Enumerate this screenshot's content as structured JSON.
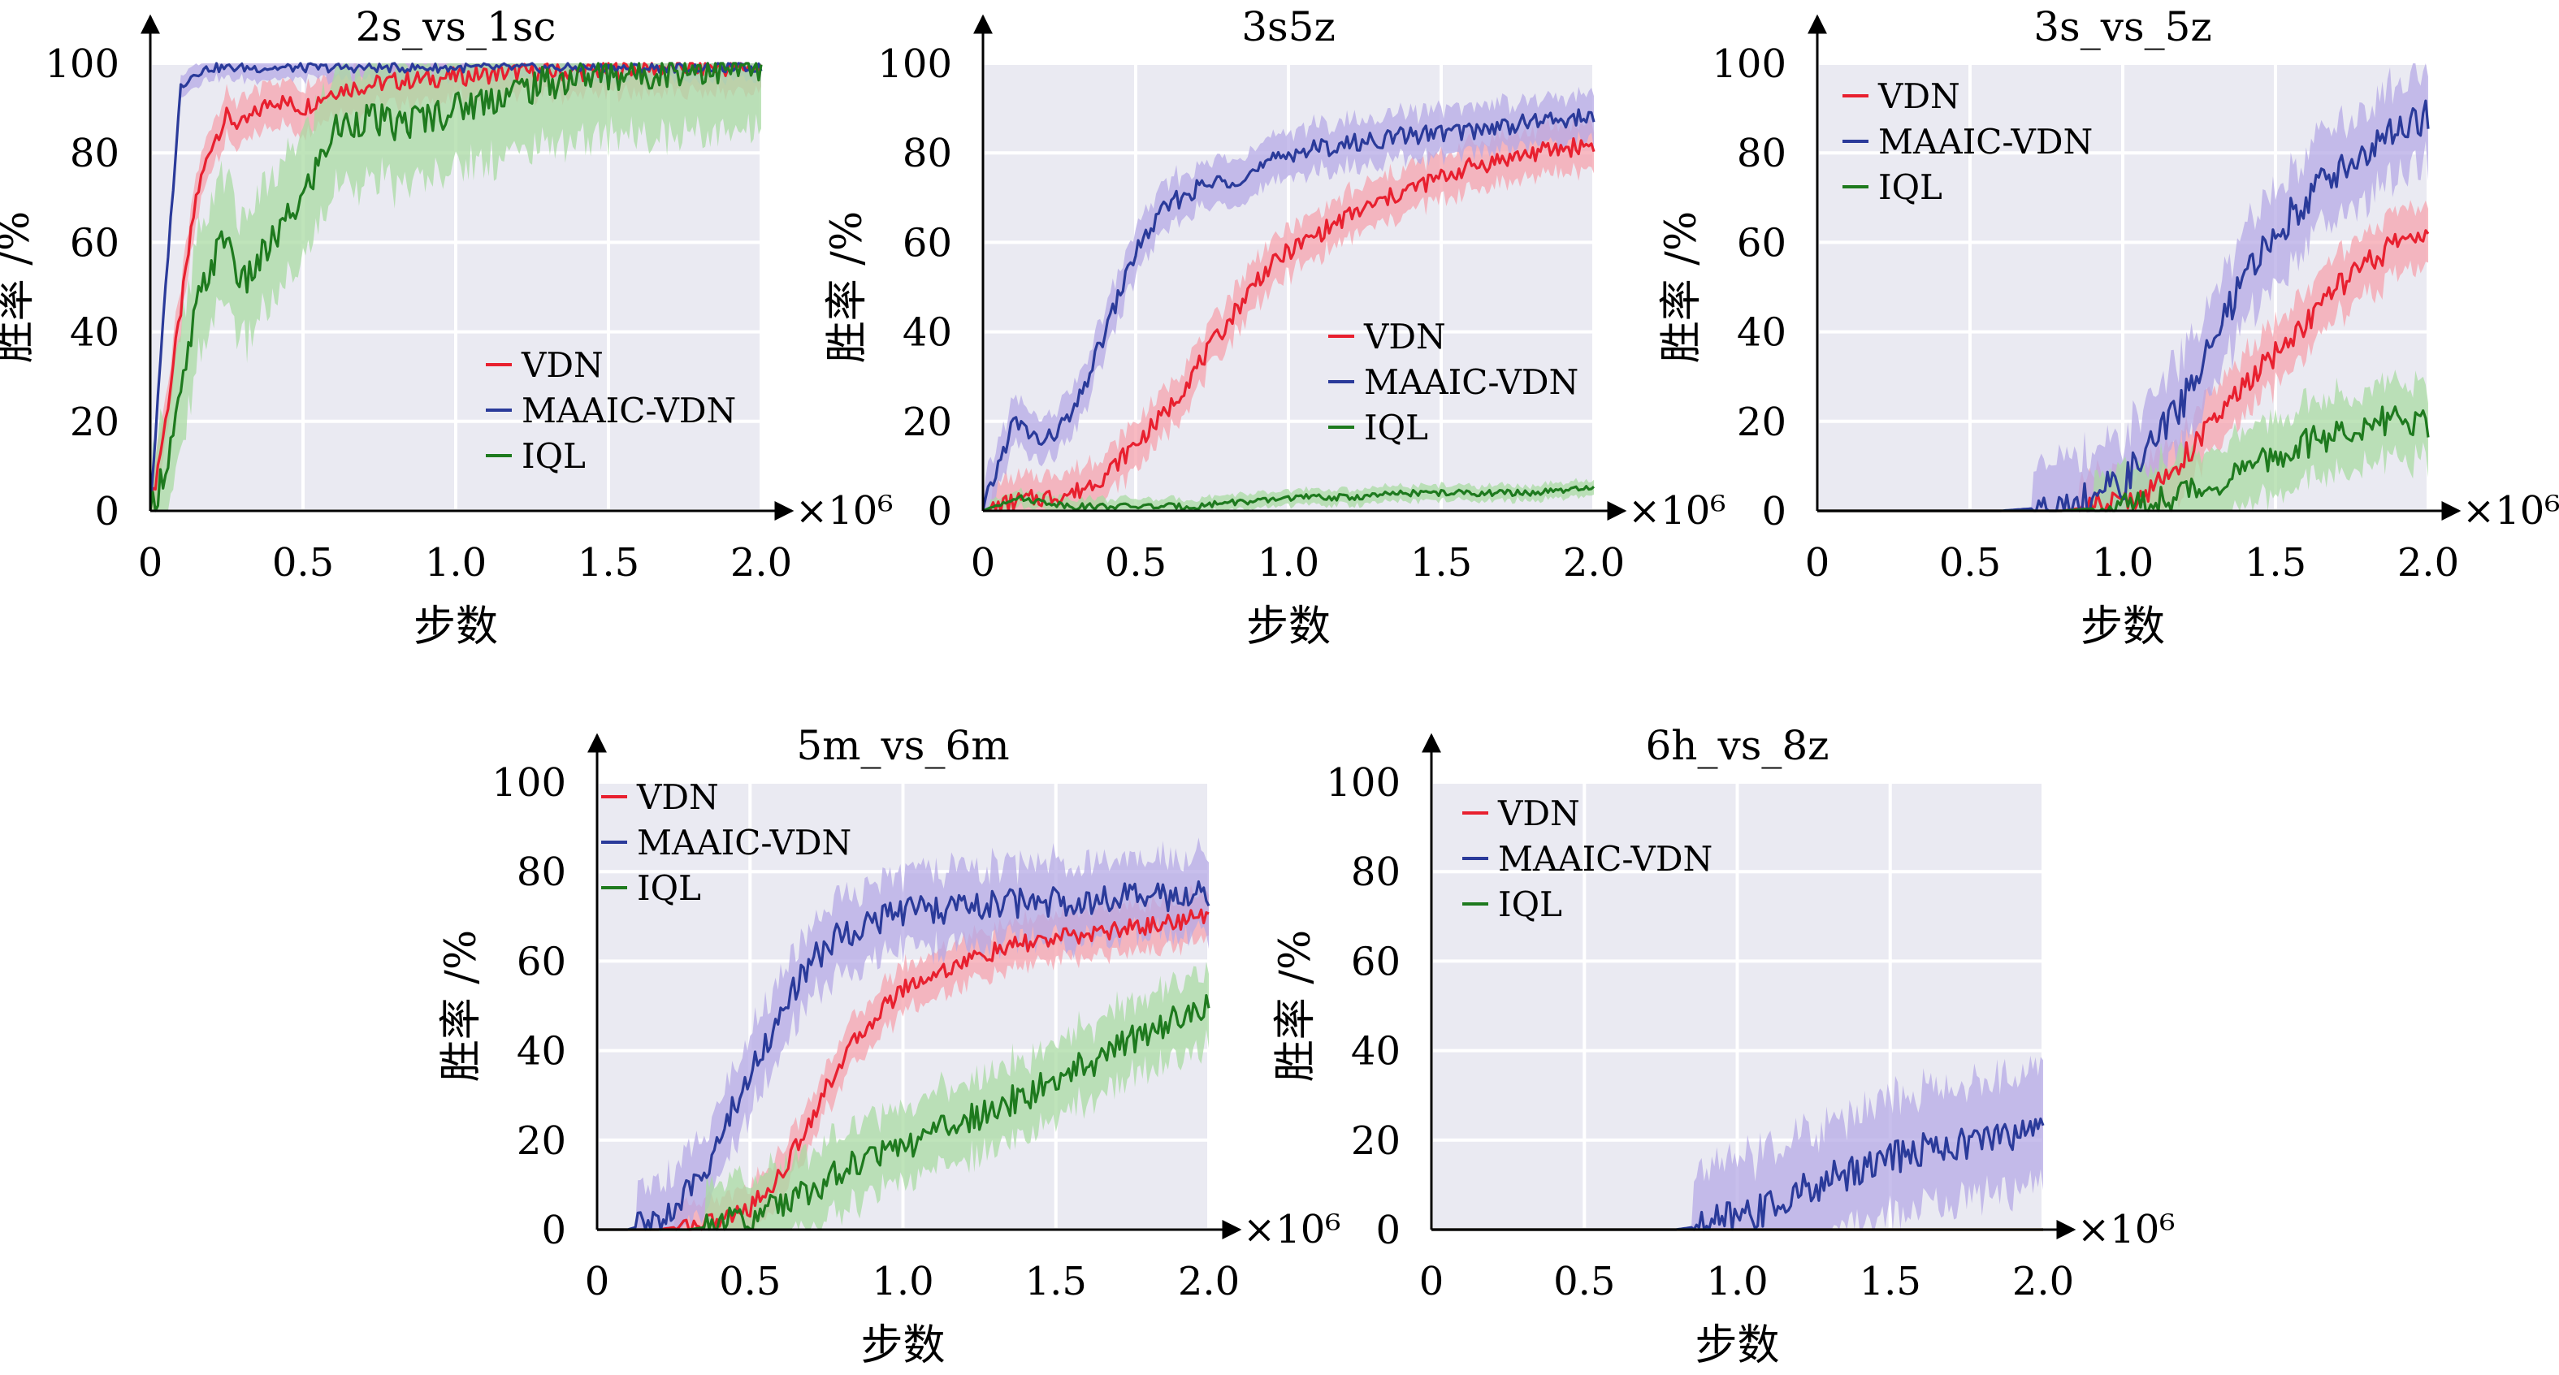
{
  "colors": {
    "VDN": "#e8202f",
    "MAAIC-VDN": "#2a3a9a",
    "IQL": "#1e7a1e",
    "VDN_band": "#f6a3ad",
    "MAAIC-VDN_band": "#b5aae6",
    "IQL_band": "#a9dba3",
    "plot_bg": "#eaeaf2",
    "grid": "#ffffff"
  },
  "common": {
    "ylabel": "胜率 /%",
    "xlabel": "步数",
    "x_multiplier": "×10⁶",
    "x_ticks": [
      "0",
      "0.5",
      "1.0",
      "1.5",
      "2.0"
    ],
    "y_ticks": [
      "0",
      "20",
      "40",
      "60",
      "80",
      "100"
    ]
  },
  "chart_data": [
    {
      "type": "line",
      "title": "2s_vs_1sc",
      "xlabel": "步数",
      "ylabel": "胜率 /%",
      "xlim": [
        0,
        2.0
      ],
      "ylim": [
        0,
        100
      ],
      "grid": true,
      "legend": "bottom-right",
      "x": [
        0,
        0.05,
        0.1,
        0.15,
        0.2,
        0.25,
        0.3,
        0.4,
        0.5,
        0.6,
        0.7,
        0.8,
        1.0,
        1.2,
        1.4,
        1.6,
        1.8,
        2.0
      ],
      "series": [
        {
          "name": "VDN",
          "values": [
            0,
            20,
            45,
            70,
            82,
            88,
            86,
            92,
            90,
            94,
            95,
            96,
            97,
            98,
            98,
            99,
            99,
            99
          ],
          "band": 6
        },
        {
          "name": "MAAIC-VDN",
          "values": [
            0,
            50,
            95,
            98,
            99,
            99,
            99,
            99,
            99,
            99,
            99,
            99,
            99,
            99,
            99,
            99,
            99,
            99
          ],
          "band": 3
        },
        {
          "name": "IQL",
          "values": [
            0,
            10,
            25,
            45,
            55,
            62,
            50,
            60,
            70,
            85,
            88,
            86,
            90,
            94,
            97,
            98,
            99,
            99
          ],
          "band": 16
        }
      ]
    },
    {
      "type": "line",
      "title": "3s5z",
      "xlabel": "步数",
      "ylabel": "胜率 /%",
      "xlim": [
        0,
        2.0
      ],
      "ylim": [
        0,
        100
      ],
      "grid": true,
      "legend": "center-right",
      "x": [
        0,
        0.1,
        0.2,
        0.3,
        0.4,
        0.5,
        0.6,
        0.7,
        0.8,
        0.9,
        1.0,
        1.2,
        1.4,
        1.6,
        1.8,
        2.0
      ],
      "series": [
        {
          "name": "VDN",
          "values": [
            0,
            2,
            3,
            4,
            8,
            15,
            22,
            32,
            42,
            52,
            58,
            66,
            72,
            77,
            80,
            82
          ],
          "band": 6
        },
        {
          "name": "MAAIC-VDN",
          "values": [
            0,
            20,
            15,
            22,
            40,
            58,
            68,
            72,
            74,
            76,
            80,
            82,
            84,
            85,
            87,
            88
          ],
          "band": 6
        },
        {
          "name": "IQL",
          "values": [
            0,
            3,
            2,
            1,
            1,
            1,
            1,
            1,
            2,
            2,
            3,
            3,
            4,
            4,
            4,
            5
          ],
          "band": 2
        }
      ]
    },
    {
      "type": "line",
      "title": "3s_vs_5z",
      "xlabel": "步数",
      "ylabel": "胜率 /%",
      "xlim": [
        0,
        2.0
      ],
      "ylim": [
        0,
        100
      ],
      "grid": true,
      "legend": "top-left",
      "x": [
        0,
        0.2,
        0.4,
        0.6,
        0.8,
        1.0,
        1.1,
        1.2,
        1.3,
        1.4,
        1.5,
        1.6,
        1.7,
        1.8,
        1.9,
        2.0
      ],
      "series": [
        {
          "name": "VDN",
          "values": [
            0,
            0,
            0,
            0,
            0,
            2,
            5,
            12,
            20,
            28,
            35,
            42,
            50,
            55,
            60,
            63
          ],
          "band": 8
        },
        {
          "name": "MAAIC-VDN",
          "values": [
            0,
            0,
            0,
            0,
            1,
            6,
            15,
            25,
            38,
            52,
            62,
            70,
            76,
            80,
            85,
            88
          ],
          "band": 12
        },
        {
          "name": "IQL",
          "values": [
            0,
            0,
            0,
            0,
            0,
            1,
            2,
            4,
            6,
            9,
            12,
            15,
            17,
            19,
            21,
            19
          ],
          "band": 10
        }
      ]
    },
    {
      "type": "line",
      "title": "5m_vs_6m",
      "xlabel": "步数",
      "ylabel": "胜率 /%",
      "xlim": [
        0,
        2.0
      ],
      "ylim": [
        0,
        100
      ],
      "grid": true,
      "legend": "top-left",
      "x": [
        0,
        0.1,
        0.2,
        0.3,
        0.4,
        0.5,
        0.6,
        0.7,
        0.8,
        0.9,
        1.0,
        1.2,
        1.4,
        1.6,
        1.8,
        2.0
      ],
      "series": [
        {
          "name": "VDN",
          "values": [
            0,
            0,
            0,
            1,
            2,
            5,
            12,
            25,
            38,
            47,
            54,
            60,
            64,
            66,
            68,
            70
          ],
          "band": 6
        },
        {
          "name": "MAAIC-VDN",
          "values": [
            0,
            0,
            2,
            8,
            20,
            35,
            48,
            60,
            66,
            69,
            71,
            72,
            73,
            74,
            74,
            75
          ],
          "band": 10
        },
        {
          "name": "IQL",
          "values": [
            0,
            0,
            0,
            0,
            1,
            3,
            6,
            9,
            13,
            16,
            19,
            24,
            30,
            37,
            44,
            50
          ],
          "band": 10
        }
      ]
    },
    {
      "type": "line",
      "title": "6h_vs_8z",
      "xlabel": "步数",
      "ylabel": "胜率 /%",
      "xlim": [
        0,
        2.0
      ],
      "ylim": [
        0,
        100
      ],
      "grid": true,
      "legend": "top-left",
      "x": [
        0,
        0.2,
        0.4,
        0.6,
        0.8,
        0.9,
        1.0,
        1.1,
        1.2,
        1.3,
        1.4,
        1.5,
        1.6,
        1.7,
        1.8,
        1.9,
        2.0
      ],
      "series": [
        {
          "name": "VDN",
          "values": [
            0,
            0,
            0,
            0,
            0,
            0,
            0,
            0,
            0,
            0,
            0,
            0,
            0,
            0,
            0,
            0,
            0
          ],
          "band": 1
        },
        {
          "name": "MAAIC-VDN",
          "values": [
            0,
            0,
            0,
            0,
            0,
            1,
            3,
            5,
            8,
            11,
            14,
            16,
            18,
            19,
            20,
            21,
            24
          ],
          "band": 15
        },
        {
          "name": "IQL",
          "values": [
            0,
            0,
            0,
            0,
            0,
            0,
            0,
            0,
            0,
            0,
            0,
            0,
            0,
            0,
            0,
            0,
            0
          ],
          "band": 1
        }
      ]
    }
  ]
}
